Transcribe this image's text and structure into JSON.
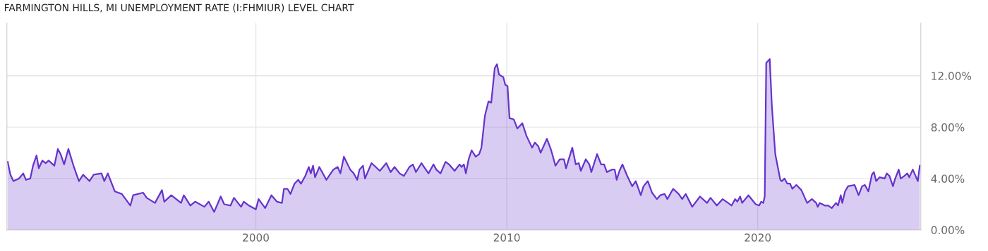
{
  "chart_data": {
    "type": "area",
    "title": "FARMINGTON HILLS, MI UNEMPLOYMENT RATE (I:FHMIUR) LEVEL CHART",
    "x": [
      1990.11,
      1990.22,
      1990.34,
      1990.56,
      1990.73,
      1990.84,
      1991.01,
      1991.12,
      1991.26,
      1991.35,
      1991.49,
      1991.63,
      1991.74,
      1991.97,
      1992.11,
      1992.22,
      1992.36,
      1992.53,
      1992.75,
      1992.95,
      1993.12,
      1993.37,
      1993.54,
      1993.85,
      1993.96,
      1994.1,
      1994.38,
      1994.66,
      1995.0,
      1995.11,
      1995.51,
      1995.65,
      1995.98,
      1996.26,
      1996.35,
      1996.63,
      1997.02,
      1997.13,
      1997.39,
      1997.58,
      1997.95,
      1998.12,
      1998.34,
      1998.6,
      1998.74,
      1998.99,
      1999.13,
      1999.41,
      1999.52,
      1999.72,
      2000.0,
      2000.11,
      2000.37,
      2000.62,
      2000.84,
      2001.04,
      2001.12,
      2001.26,
      2001.38,
      2001.54,
      2001.69,
      2001.8,
      2001.97,
      2002.11,
      2002.19,
      2002.28,
      2002.36,
      2002.53,
      2002.81,
      2003.09,
      2003.26,
      2003.37,
      2003.51,
      2003.76,
      2003.9,
      2004.04,
      2004.13,
      2004.27,
      2004.35,
      2004.61,
      2004.78,
      2004.94,
      2005.2,
      2005.37,
      2005.53,
      2005.73,
      2005.9,
      2006.12,
      2006.26,
      2006.38,
      2006.6,
      2006.88,
      2007.08,
      2007.19,
      2007.36,
      2007.56,
      2007.7,
      2007.92,
      2008.12,
      2008.2,
      2008.29,
      2008.37,
      2008.48,
      2008.6,
      2008.76,
      2008.9,
      2008.99,
      2009.13,
      2009.27,
      2009.38,
      2009.52,
      2009.61,
      2009.69,
      2009.86,
      2009.94,
      2010.03,
      2010.11,
      2010.28,
      2010.42,
      2010.62,
      2010.79,
      2011.01,
      2011.12,
      2011.26,
      2011.35,
      2011.6,
      2011.77,
      2011.94,
      2012.11,
      2012.28,
      2012.36,
      2012.61,
      2012.75,
      2012.87,
      2012.95,
      2013.15,
      2013.29,
      2013.37,
      2013.6,
      2013.76,
      2013.88,
      2013.99,
      2014.19,
      2014.3,
      2014.38,
      2014.49,
      2014.61,
      2014.8,
      2015.0,
      2015.14,
      2015.34,
      2015.45,
      2015.62,
      2015.79,
      2015.98,
      2016.12,
      2016.29,
      2016.4,
      2016.63,
      2016.85,
      2016.99,
      2017.13,
      2017.39,
      2017.7,
      2017.98,
      2018.12,
      2018.37,
      2018.6,
      2018.82,
      2018.96,
      2019.1,
      2019.19,
      2019.3,
      2019.38,
      2019.63,
      2019.92,
      2020.06,
      2020.14,
      2020.22,
      2020.28,
      2020.34,
      2020.48,
      2020.56,
      2020.7,
      2020.9,
      2020.96,
      2021.07,
      2021.18,
      2021.29,
      2021.38,
      2021.54,
      2021.74,
      2021.97,
      2022.16,
      2022.33,
      2022.39,
      2022.47,
      2022.58,
      2022.67,
      2022.81,
      2022.95,
      2023.12,
      2023.2,
      2023.31,
      2023.37,
      2023.48,
      2023.6,
      2023.86,
      2024.02,
      2024.16,
      2024.27,
      2024.41,
      2024.55,
      2024.63,
      2024.72,
      2024.86,
      2025.06,
      2025.14,
      2025.25,
      2025.39,
      2025.48,
      2025.62,
      2025.7,
      2025.84,
      2025.96,
      2026.04,
      2026.18,
      2026.38,
      2026.46
    ],
    "series": [
      {
        "color": "#6633cc",
        "values": [
          5.3,
          4.3,
          3.8,
          4.0,
          4.4,
          3.9,
          4.0,
          5.0,
          5.8,
          4.8,
          5.4,
          5.2,
          5.4,
          5.0,
          6.3,
          5.9,
          5.1,
          6.3,
          4.9,
          3.8,
          4.3,
          3.8,
          4.3,
          4.4,
          3.8,
          4.4,
          3.0,
          2.8,
          1.9,
          2.7,
          2.9,
          2.5,
          2.1,
          3.1,
          2.2,
          2.7,
          2.1,
          2.7,
          1.9,
          2.2,
          1.8,
          2.2,
          1.4,
          2.6,
          2.0,
          1.9,
          2.5,
          1.8,
          2.2,
          1.9,
          1.6,
          2.4,
          1.7,
          2.7,
          2.2,
          2.1,
          3.2,
          3.2,
          2.8,
          3.6,
          3.9,
          3.6,
          4.2,
          4.9,
          4.4,
          5.0,
          4.1,
          4.9,
          3.9,
          4.7,
          4.9,
          4.4,
          5.7,
          4.7,
          4.4,
          3.9,
          4.7,
          5.0,
          4.0,
          5.2,
          4.9,
          4.6,
          5.2,
          4.5,
          4.9,
          4.4,
          4.2,
          4.9,
          5.1,
          4.5,
          5.2,
          4.4,
          5.1,
          4.7,
          4.4,
          5.3,
          5.1,
          4.6,
          5.1,
          4.9,
          5.1,
          4.4,
          5.5,
          6.2,
          5.7,
          5.9,
          6.4,
          8.9,
          10.0,
          9.9,
          12.6,
          12.9,
          12.1,
          11.9,
          11.3,
          11.2,
          8.7,
          8.6,
          7.9,
          8.3,
          7.3,
          6.4,
          6.8,
          6.5,
          6.0,
          7.1,
          6.2,
          5.0,
          5.5,
          5.5,
          4.8,
          6.4,
          5.1,
          5.2,
          4.6,
          5.5,
          5.1,
          4.5,
          5.9,
          5.1,
          5.1,
          4.5,
          4.7,
          4.7,
          3.9,
          4.6,
          5.1,
          4.2,
          3.4,
          3.8,
          2.7,
          3.4,
          3.8,
          2.9,
          2.4,
          2.7,
          2.8,
          2.4,
          3.2,
          2.8,
          2.4,
          2.8,
          1.8,
          2.6,
          2.1,
          2.5,
          1.9,
          2.4,
          2.1,
          1.9,
          2.4,
          2.2,
          2.6,
          2.1,
          2.7,
          2.0,
          1.9,
          2.2,
          2.1,
          2.6,
          13.0,
          13.3,
          9.8,
          5.9,
          3.9,
          3.8,
          4.0,
          3.6,
          3.6,
          3.2,
          3.5,
          3.1,
          2.1,
          2.4,
          2.1,
          1.8,
          2.1,
          2.0,
          1.9,
          1.9,
          1.7,
          2.1,
          1.9,
          2.7,
          2.1,
          3.0,
          3.4,
          3.5,
          2.7,
          3.4,
          3.5,
          3.0,
          4.3,
          4.5,
          3.8,
          4.1,
          4.0,
          4.4,
          4.2,
          3.4,
          4.0,
          4.7,
          4.0,
          4.2,
          4.4,
          4.1,
          4.7,
          3.8,
          5.0
        ]
      }
    ],
    "xlim": [
      1990.08,
      2026.5
    ],
    "xticks": [
      2000,
      2010,
      2020
    ],
    "ylim": [
      0,
      16.1
    ],
    "yticks": [
      {
        "value": 0,
        "label": "0.00%"
      },
      {
        "value": 4,
        "label": "4.00%"
      },
      {
        "value": 8,
        "label": "8.00%"
      },
      {
        "value": 12,
        "label": "12.00%"
      }
    ],
    "grid": true,
    "legend": false
  }
}
